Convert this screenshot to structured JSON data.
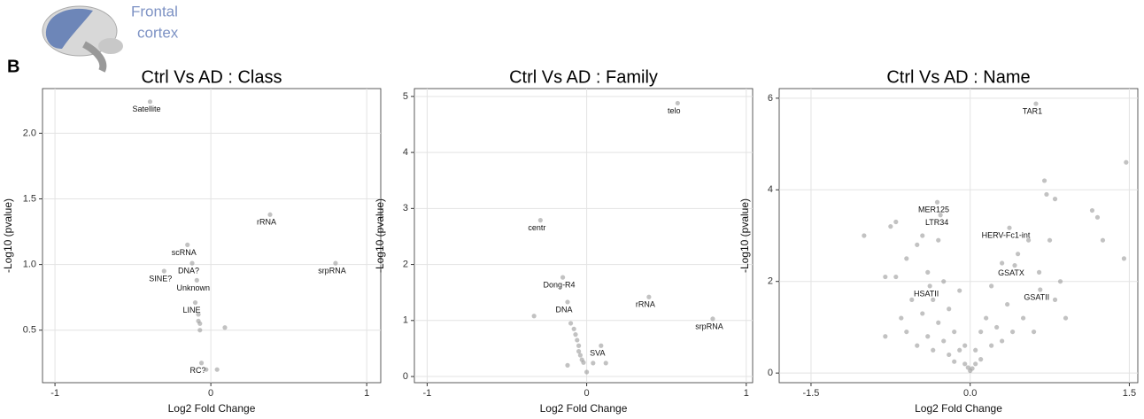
{
  "header": {
    "panel_label": "B",
    "region": [
      "Frontal",
      "cortex"
    ]
  },
  "chart_data": [
    {
      "type": "scatter",
      "title": "Ctrl Vs AD : Class",
      "x_label": "Log2 Fold Change",
      "y_label": "-Log10 (pvalue)",
      "color": "#9a9a9a",
      "grid": true,
      "xlim": [
        -1.08,
        1.09
      ],
      "ylim": [
        0.1,
        2.34
      ],
      "xticks": [
        -1,
        0,
        1
      ],
      "yticks": [
        0.5,
        {
          "value": 1,
          "label": "1.0"
        },
        1.5,
        {
          "value": 2,
          "label": "2.0"
        }
      ],
      "x": [
        -0.39,
        0.38,
        0.8,
        -0.15,
        -0.12,
        -0.3,
        -0.09,
        -0.1,
        -0.08,
        -0.08,
        -0.07,
        -0.07,
        0.09,
        -0.06,
        -0.03,
        0.04
      ],
      "y": [
        2.24,
        1.38,
        1.01,
        1.15,
        1.01,
        0.95,
        0.88,
        0.71,
        0.62,
        0.57,
        0.55,
        0.5,
        0.52,
        0.25,
        0.2,
        0.2
      ],
      "point_labels": [
        "Satellite",
        "rRNA",
        "srpRNA",
        "scRNA",
        "DNA?",
        "SINE?",
        "Unknown",
        "LINE",
        null,
        null,
        null,
        null,
        null,
        "RC?",
        null,
        null
      ]
    },
    {
      "type": "scatter",
      "title": "Ctrl Vs AD : Family",
      "x_label": "Log2 Fold Change",
      "y_label": "-Log10 (pvalue)",
      "color": "#9a9a9a",
      "grid": true,
      "xlim": [
        -1.08,
        1.04
      ],
      "ylim": [
        -0.11,
        5.14
      ],
      "xticks": [
        -1,
        0,
        1
      ],
      "yticks": [
        0,
        1,
        2,
        3,
        4,
        5
      ],
      "x": [
        0.57,
        -0.29,
        -0.15,
        -0.12,
        0.39,
        0.79,
        0.09,
        -0.33,
        -0.1,
        -0.08,
        -0.07,
        -0.06,
        -0.05,
        -0.05,
        -0.04,
        -0.03,
        -0.02,
        0.04,
        0.12,
        0,
        -0.12
      ],
      "y": [
        4.88,
        2.79,
        1.77,
        1.33,
        1.42,
        1.03,
        0.55,
        1.08,
        0.95,
        0.85,
        0.75,
        0.65,
        0.55,
        0.45,
        0.38,
        0.3,
        0.25,
        0.24,
        0.24,
        0.08,
        0.2
      ],
      "point_labels": [
        "telo",
        "centr",
        "Dong-R4",
        "DNA",
        "rRNA",
        "srpRNA",
        "SVA",
        null,
        null,
        null,
        null,
        null,
        null,
        null,
        null,
        null,
        null,
        null,
        null,
        null,
        null
      ]
    },
    {
      "type": "scatter",
      "title": "Ctrl Vs AD : Name",
      "x_label": "Log2 Fold Change",
      "y_label": "-Log10 (pvalue)",
      "color": "#9a9a9a",
      "grid": true,
      "xlim": [
        -1.8,
        1.58
      ],
      "ylim": [
        -0.21,
        6.21
      ],
      "xticks": [
        -1.5,
        {
          "value": 0,
          "label": "0.0"
        },
        1.5
      ],
      "yticks": [
        0,
        2,
        4,
        6
      ],
      "x": [
        0.62,
        -0.31,
        -0.28,
        0.37,
        0.42,
        0.66,
        -0.38,
        -1.0,
        -0.75,
        -0.7,
        -0.65,
        -0.6,
        -0.55,
        -0.5,
        -0.5,
        -0.45,
        -0.4,
        -0.4,
        -0.35,
        -0.35,
        -0.3,
        -0.3,
        -0.25,
        -0.25,
        -0.2,
        -0.2,
        -0.15,
        -0.15,
        -0.1,
        -0.1,
        -0.05,
        -0.05,
        -0.8,
        -0.8,
        -0.7,
        -0.6,
        -0.45,
        0.05,
        0.05,
        0.1,
        0.1,
        0.15,
        0.2,
        0.2,
        0.25,
        0.3,
        0.3,
        0.35,
        0.4,
        0.45,
        0.5,
        0.55,
        0.6,
        0.65,
        0.7,
        0.72,
        0.8,
        0.75,
        0.8,
        0.85,
        0.9,
        1.15,
        1.2,
        1.25,
        1.47,
        1.45,
        0.0,
        0.02,
        -0.02
      ],
      "y": [
        5.88,
        3.73,
        3.45,
        3.17,
        2.35,
        1.82,
        1.9,
        3.0,
        3.2,
        2.1,
        1.2,
        0.9,
        1.6,
        2.8,
        0.6,
        1.3,
        2.2,
        0.8,
        1.6,
        0.5,
        2.9,
        1.1,
        0.7,
        2.0,
        0.4,
        1.4,
        0.9,
        0.25,
        0.5,
        1.8,
        0.2,
        0.6,
        0.8,
        2.1,
        3.3,
        2.5,
        3.0,
        0.2,
        0.5,
        0.9,
        0.3,
        1.2,
        0.6,
        1.9,
        1.0,
        2.4,
        0.7,
        1.5,
        0.9,
        2.6,
        1.2,
        2.9,
        0.9,
        2.2,
        4.2,
        3.9,
        3.8,
        2.9,
        1.6,
        2.0,
        1.2,
        3.55,
        3.4,
        2.9,
        4.6,
        2.5,
        0.05,
        0.1,
        0.12
      ],
      "point_labels": [
        "TAR1",
        "MER125",
        "LTR34",
        "HERV-Fc1-int",
        "GSATX",
        "GSATII",
        "HSATII",
        null,
        null,
        null,
        null,
        null,
        null,
        null,
        null,
        null,
        null,
        null,
        null,
        null,
        null,
        null,
        null,
        null,
        null,
        null,
        null,
        null,
        null,
        null,
        null,
        null,
        null,
        null,
        null,
        null,
        null,
        null,
        null,
        null,
        null,
        null,
        null,
        null,
        null,
        null,
        null,
        null,
        null,
        null,
        null,
        null,
        null,
        null,
        null,
        null,
        null,
        null,
        null,
        null,
        null,
        null,
        null,
        null,
        null,
        null,
        null,
        null,
        null
      ]
    }
  ]
}
